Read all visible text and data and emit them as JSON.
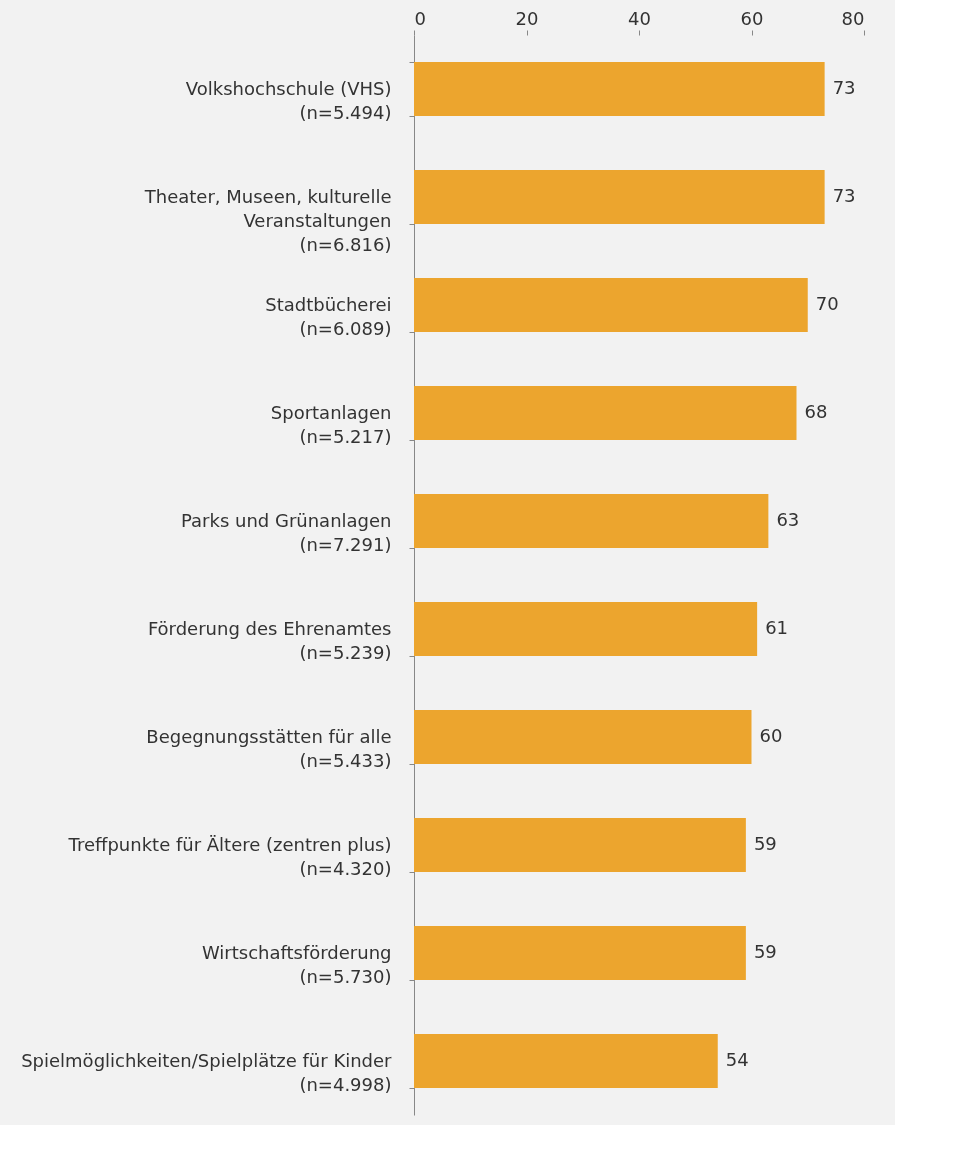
{
  "chart_data": {
    "type": "bar",
    "orientation": "horizontal",
    "categories": [
      "Volkshochschule (VHS)\n(n=5.494)",
      "Theater, Museen, kulturelle\nVeranstaltungen\n(n=6.816)",
      "Stadtbücherei\n(n=6.089)",
      "Sportanlagen\n(n=5.217)",
      "Parks und Grünanlagen\n(n=7.291)",
      "Förderung des Ehrenamtes\n(n=5.239)",
      "Begegnungsstätten für alle\n(n=5.433)",
      "Treffpunkte für Ältere (zentren plus)\n(n=4.320)",
      "Wirtschaftsförderung\n(n=5.730)",
      "Spielmöglichkeiten/Spielplätze für Kinder\n(n=4.998)"
    ],
    "values": [
      73,
      73,
      70,
      68,
      63,
      61,
      60,
      59,
      59,
      54
    ],
    "color": "#eca52e",
    "xlim": [
      0,
      80
    ],
    "xticks": [
      0,
      20,
      40,
      60,
      80
    ],
    "data_labels": true
  }
}
